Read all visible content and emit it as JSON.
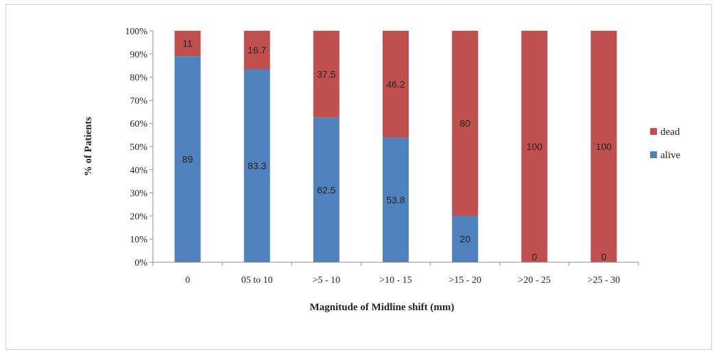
{
  "chart_data": {
    "type": "bar",
    "stacked": true,
    "categories": [
      "0",
      "05 to 10",
      ">5 - 10",
      ">10 - 15",
      ">15 - 20",
      ">20 - 25",
      ">25 - 30"
    ],
    "series": [
      {
        "name": "alive",
        "values": [
          89,
          83.3,
          62.5,
          53.8,
          20,
          0,
          0
        ],
        "labels": [
          "89",
          "83.3",
          "62.5",
          "53.8",
          "20",
          "0",
          "0"
        ],
        "color": "#4f81bd"
      },
      {
        "name": "dead",
        "values": [
          11,
          16.7,
          37.5,
          46.2,
          80,
          100,
          100
        ],
        "labels": [
          "11",
          "16.7",
          "37.5",
          "46.2",
          "80",
          "100",
          "100"
        ],
        "color": "#c0504d"
      }
    ],
    "ylim": [
      0,
      100
    ],
    "yticks": [
      "0%",
      "10%",
      "20%",
      "30%",
      "40%",
      "50%",
      "60%",
      "70%",
      "80%",
      "90%",
      "100%"
    ],
    "ylabel": "% of Patients",
    "xlabel": "Magnitude of Midline shift (mm)",
    "legend_position": "right",
    "legend_order": [
      "dead",
      "alive"
    ],
    "grid": false
  }
}
